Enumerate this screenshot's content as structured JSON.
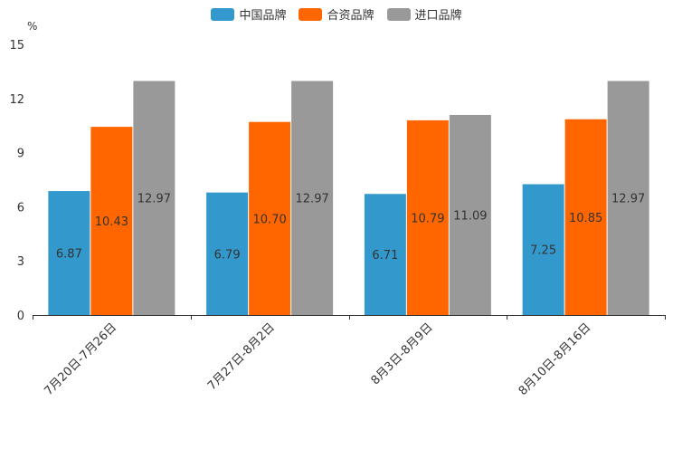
{
  "chart_data": {
    "type": "bar",
    "unit": "%",
    "categories": [
      "7月20日-7月26日",
      "7月27日-8月2日",
      "8月3日-8月9日",
      "8月10日-8月16日"
    ],
    "series": [
      {
        "name": "中国品牌",
        "color": "#3399cc",
        "values": [
          6.87,
          6.79,
          6.71,
          7.25
        ],
        "labels": [
          "6.87",
          "6.79",
          "6.71",
          "7.25"
        ]
      },
      {
        "name": "合资品牌",
        "color": "#ff6600",
        "values": [
          10.43,
          10.7,
          10.79,
          10.85
        ],
        "labels": [
          "10.43",
          "10.70",
          "10.79",
          "10.85"
        ]
      },
      {
        "name": "进口品牌",
        "color": "#999999",
        "values": [
          12.97,
          12.97,
          11.09,
          12.97
        ],
        "labels": [
          "12.97",
          "12.97",
          "11.09",
          "12.97"
        ]
      }
    ],
    "ylim": [
      0,
      15
    ],
    "yticks": [
      "0",
      "3",
      "6",
      "9",
      "12",
      "15"
    ],
    "legend_position": "top-center"
  }
}
